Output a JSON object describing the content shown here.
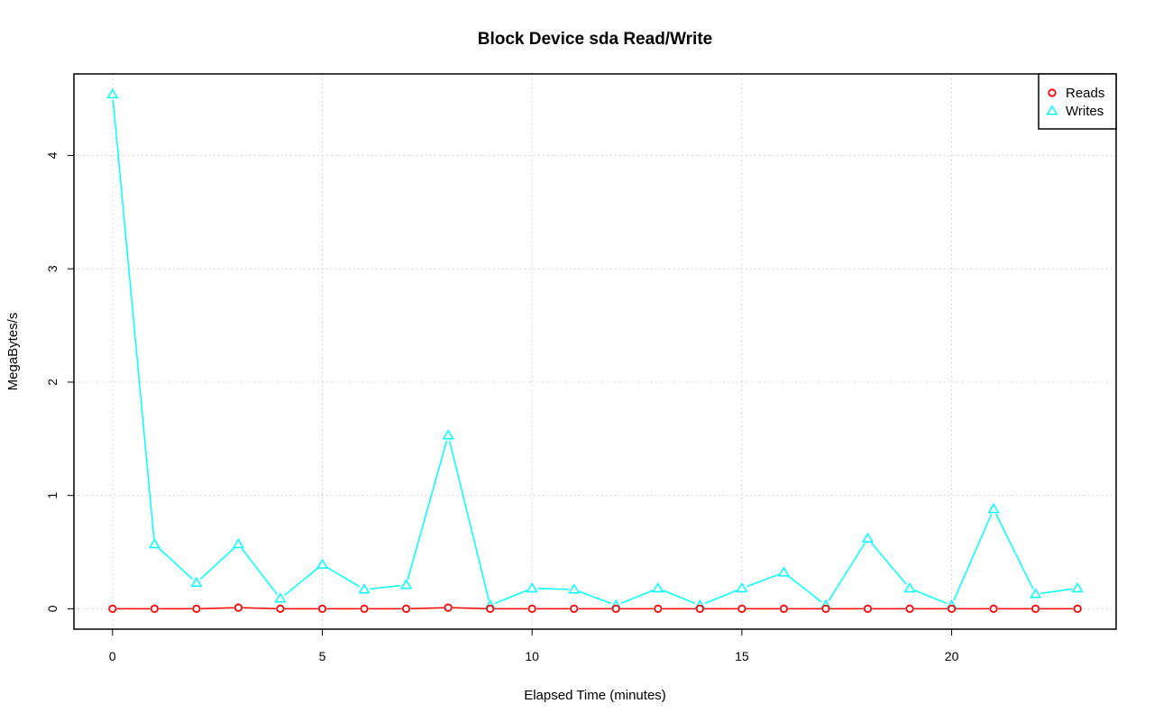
{
  "chart_data": {
    "type": "line",
    "title": "Block Device sda Read/Write",
    "xlabel": "Elapsed Time (minutes)",
    "ylabel": "MegaBytes/s",
    "xlim": [
      -0.92,
      23.92
    ],
    "ylim": [
      -0.18,
      4.72
    ],
    "xticks": [
      0,
      5,
      10,
      15,
      20
    ],
    "yticks": [
      0,
      1,
      2,
      3,
      4
    ],
    "grid": true,
    "legend_position": "top-right",
    "x": [
      0,
      1,
      2,
      3,
      4,
      5,
      6,
      7,
      8,
      9,
      10,
      11,
      12,
      13,
      14,
      15,
      16,
      17,
      18,
      19,
      20,
      21,
      22,
      23
    ],
    "series": [
      {
        "name": "Reads",
        "color": "#ff0000",
        "marker": "circle",
        "values": [
          0,
          0,
          0,
          0.01,
          0,
          0,
          0,
          0,
          0.01,
          0,
          0,
          0,
          0,
          0,
          0,
          0,
          0,
          0,
          0,
          0,
          0,
          0,
          0,
          0
        ]
      },
      {
        "name": "Writes",
        "color": "#00ffff",
        "marker": "triangle",
        "values": [
          4.54,
          0.57,
          0.23,
          0.57,
          0.09,
          0.39,
          0.17,
          0.21,
          1.53,
          0.03,
          0.18,
          0.17,
          0.03,
          0.18,
          0.03,
          0.18,
          0.32,
          0.03,
          0.62,
          0.18,
          0.03,
          0.88,
          0.13,
          0.18
        ]
      }
    ]
  }
}
